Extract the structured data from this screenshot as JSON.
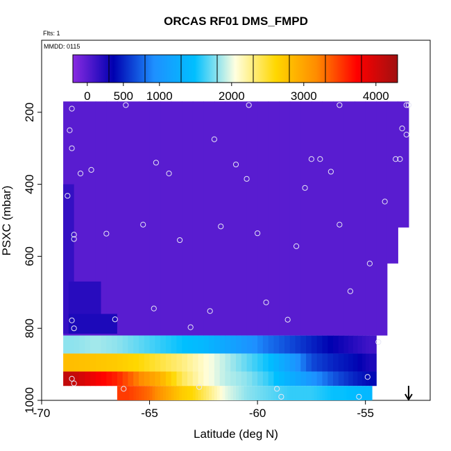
{
  "chart_data": {
    "type": "heatmap",
    "title": "ORCAS RF01 DMS_FMPD",
    "subtitle_flts": "Flts: 1",
    "subtitle_mmdd": "MMDD: 0115",
    "xlabel": "Latitude (deg N)",
    "ylabel": "PSXC (mbar)",
    "xlim": [
      -70,
      -52
    ],
    "ylim": [
      1000,
      0
    ],
    "x_ticks": [
      -70,
      -65,
      -60,
      -55
    ],
    "x_tick_labels": [
      "-70",
      "-65",
      "-60",
      "-55"
    ],
    "y_ticks": [
      200,
      400,
      600,
      800,
      1000
    ],
    "y_tick_labels": [
      "200",
      "400",
      "600",
      "800",
      "1000"
    ],
    "colorbar": {
      "range": [
        -200,
        4300
      ],
      "tick_values": [
        0,
        500,
        1000,
        2000,
        3000,
        4000
      ],
      "tick_labels": [
        "0",
        "500",
        "1000",
        "2000",
        "3000",
        "4000"
      ],
      "colors": [
        "#8a2be2",
        "#0000b0",
        "#1e90ff",
        "#00bfff",
        "#ffffe0",
        "#ffd700",
        "#ff8c00",
        "#ff0000",
        "#a01010"
      ]
    },
    "background_value": 0,
    "columns": [
      {
        "lat": -68.75,
        "ptop": 170,
        "pbot": 970
      },
      {
        "lat": -68.25,
        "ptop": 170,
        "pbot": 970
      },
      {
        "lat": -67.75,
        "ptop": 170,
        "pbot": 970
      },
      {
        "lat": -67.25,
        "ptop": 170,
        "pbot": 970
      },
      {
        "lat": -66.75,
        "ptop": 170,
        "pbot": 970
      },
      {
        "lat": -66.25,
        "ptop": 170,
        "pbot": 1000
      },
      {
        "lat": -65.75,
        "ptop": 170,
        "pbot": 1000
      },
      {
        "lat": -65.25,
        "ptop": 170,
        "pbot": 1000
      },
      {
        "lat": -64.75,
        "ptop": 170,
        "pbot": 1000
      },
      {
        "lat": -64.25,
        "ptop": 170,
        "pbot": 1000
      },
      {
        "lat": -63.75,
        "ptop": 170,
        "pbot": 1000
      },
      {
        "lat": -63.25,
        "ptop": 170,
        "pbot": 1000
      },
      {
        "lat": -62.75,
        "ptop": 170,
        "pbot": 1000
      },
      {
        "lat": -62.25,
        "ptop": 170,
        "pbot": 1000
      },
      {
        "lat": -61.75,
        "ptop": 170,
        "pbot": 1000
      },
      {
        "lat": -61.25,
        "ptop": 170,
        "pbot": 1000
      },
      {
        "lat": -60.75,
        "ptop": 170,
        "pbot": 1000
      },
      {
        "lat": -60.25,
        "ptop": 170,
        "pbot": 1000
      },
      {
        "lat": -59.75,
        "ptop": 170,
        "pbot": 1000
      },
      {
        "lat": -59.25,
        "ptop": 170,
        "pbot": 1000
      },
      {
        "lat": -58.75,
        "ptop": 170,
        "pbot": 1000
      },
      {
        "lat": -58.25,
        "ptop": 170,
        "pbot": 1000
      },
      {
        "lat": -57.75,
        "ptop": 170,
        "pbot": 1000
      },
      {
        "lat": -57.25,
        "ptop": 170,
        "pbot": 1000
      },
      {
        "lat": -56.75,
        "ptop": 170,
        "pbot": 1000
      },
      {
        "lat": -56.25,
        "ptop": 170,
        "pbot": 1000
      },
      {
        "lat": -55.75,
        "ptop": 170,
        "pbot": 1000
      },
      {
        "lat": -55.25,
        "ptop": 170,
        "pbot": 1000
      },
      {
        "lat": -54.75,
        "ptop": 170,
        "pbot": 970
      },
      {
        "lat": -54.25,
        "ptop": 170,
        "pbot": 830
      },
      {
        "lat": -53.75,
        "ptop": 170,
        "pbot": 620
      },
      {
        "lat": -53.25,
        "ptop": 170,
        "pbot": 520
      }
    ],
    "layers": [
      {
        "name": "band_820_870",
        "pmin": 820,
        "pmax": 870,
        "lat": [
          -68.5,
          -67.5,
          -66.5,
          -65.5,
          -64.5,
          -63.5,
          -62.5,
          -61.5,
          -60.5,
          -59.5,
          -58.5,
          -57.5,
          -56.5,
          -55.5,
          -54.8
        ],
        "values": [
          1800,
          1850,
          1800,
          1700,
          1600,
          1500,
          1400,
          1200,
          1000,
          800,
          650,
          500,
          350,
          200,
          100
        ]
      },
      {
        "name": "band_870_920",
        "pmin": 870,
        "pmax": 920,
        "lat": [
          -68.5,
          -67.5,
          -66.5,
          -65.5,
          -64.5,
          -63.5,
          -62.5,
          -61.5,
          -60.5,
          -59.5,
          -58.5,
          -57.5,
          -56.5,
          -55.5,
          -54.8
        ],
        "values": [
          2800,
          2750,
          2700,
          2600,
          2450,
          2300,
          2100,
          1900,
          1700,
          1500,
          1100,
          650,
          500,
          400,
          250
        ]
      },
      {
        "name": "band_920_960",
        "pmin": 920,
        "pmax": 960,
        "lat": [
          -68.5,
          -67.5,
          -66.5,
          -65.5,
          -64.5,
          -63.5,
          -62.5,
          -61.5,
          -60.5,
          -59.5,
          -58.5,
          -57.5,
          -56.5,
          -55.5,
          -54.8
        ],
        "values": [
          4100,
          3800,
          3600,
          3200,
          2900,
          2400,
          2100,
          1900,
          1800,
          1600,
          1300,
          1000,
          700,
          500,
          400
        ]
      },
      {
        "name": "band_960_1000",
        "pmin": 960,
        "pmax": 1000,
        "lat": [
          -66.0,
          -65.5,
          -65.0,
          -64.5,
          -64.0,
          -63.5,
          -63.0,
          -62.5,
          -62.0,
          -61.5,
          -61.0,
          -60.5,
          -60.0,
          -59.5,
          -59.0,
          -58.5,
          -58.0,
          -57.5,
          -57.0,
          -56.5,
          -56.0,
          -55.5,
          -55.0
        ],
        "values": [
          3500,
          3400,
          3300,
          3100,
          2900,
          2700,
          2600,
          2400,
          2200,
          2000,
          1900,
          1800,
          1750,
          1700,
          1650,
          1600,
          1600,
          1600,
          1550,
          1500,
          1500,
          1450,
          1400
        ]
      }
    ],
    "lower_left_columns": [
      {
        "lat_min": -69.0,
        "lat_max": -68.5,
        "pmin": 400,
        "pmax": 815,
        "value": 150
      },
      {
        "lat_min": -68.75,
        "lat_max": -67.25,
        "pmin": 670,
        "pmax": 815,
        "value": 200
      },
      {
        "lat_min": -68.75,
        "lat_max": -66.5,
        "pmin": 760,
        "pmax": 815,
        "value": 250
      }
    ],
    "samples": [
      {
        "x": -68.6,
        "y": 190
      },
      {
        "x": -68.7,
        "y": 250
      },
      {
        "x": -68.6,
        "y": 300
      },
      {
        "x": -68.2,
        "y": 370
      },
      {
        "x": -67.7,
        "y": 360
      },
      {
        "x": -66.1,
        "y": 180
      },
      {
        "x": -64.7,
        "y": 340
      },
      {
        "x": -64.1,
        "y": 370
      },
      {
        "x": -62.0,
        "y": 275
      },
      {
        "x": -61.0,
        "y": 345
      },
      {
        "x": -60.4,
        "y": 180
      },
      {
        "x": -60.5,
        "y": 385
      },
      {
        "x": -57.5,
        "y": 330
      },
      {
        "x": -57.1,
        "y": 330
      },
      {
        "x": -56.6,
        "y": 365
      },
      {
        "x": -56.2,
        "y": 180
      },
      {
        "x": -53.1,
        "y": 180
      },
      {
        "x": -53.0,
        "y": 180
      },
      {
        "x": -53.3,
        "y": 245
      },
      {
        "x": -53.1,
        "y": 262
      },
      {
        "x": -53.6,
        "y": 330
      },
      {
        "x": -53.4,
        "y": 330
      },
      {
        "x": -54.1,
        "y": 448
      },
      {
        "x": -57.8,
        "y": 410
      },
      {
        "x": -68.8,
        "y": 432
      },
      {
        "x": -68.5,
        "y": 540
      },
      {
        "x": -68.5,
        "y": 552
      },
      {
        "x": -67.0,
        "y": 537
      },
      {
        "x": -65.3,
        "y": 512
      },
      {
        "x": -63.6,
        "y": 555
      },
      {
        "x": -61.7,
        "y": 517
      },
      {
        "x": -60.0,
        "y": 536
      },
      {
        "x": -58.2,
        "y": 572
      },
      {
        "x": -56.2,
        "y": 512
      },
      {
        "x": -54.8,
        "y": 620
      },
      {
        "x": -55.7,
        "y": 697
      },
      {
        "x": -59.6,
        "y": 728
      },
      {
        "x": -62.2,
        "y": 752
      },
      {
        "x": -64.8,
        "y": 745
      },
      {
        "x": -66.6,
        "y": 775
      },
      {
        "x": -68.6,
        "y": 778
      },
      {
        "x": -68.5,
        "y": 800
      },
      {
        "x": -63.1,
        "y": 797
      },
      {
        "x": -58.6,
        "y": 776
      },
      {
        "x": -54.4,
        "y": 838
      },
      {
        "x": -68.6,
        "y": 940
      },
      {
        "x": -68.5,
        "y": 953
      },
      {
        "x": -54.9,
        "y": 935
      },
      {
        "x": -66.2,
        "y": 968
      },
      {
        "x": -62.7,
        "y": 963
      },
      {
        "x": -59.1,
        "y": 968
      },
      {
        "x": -58.9,
        "y": 990
      },
      {
        "x": -55.3,
        "y": 990
      }
    ],
    "flight_direction_marker": {
      "lat": -53.0,
      "p": 1000,
      "symbol": "down-arrow"
    }
  }
}
